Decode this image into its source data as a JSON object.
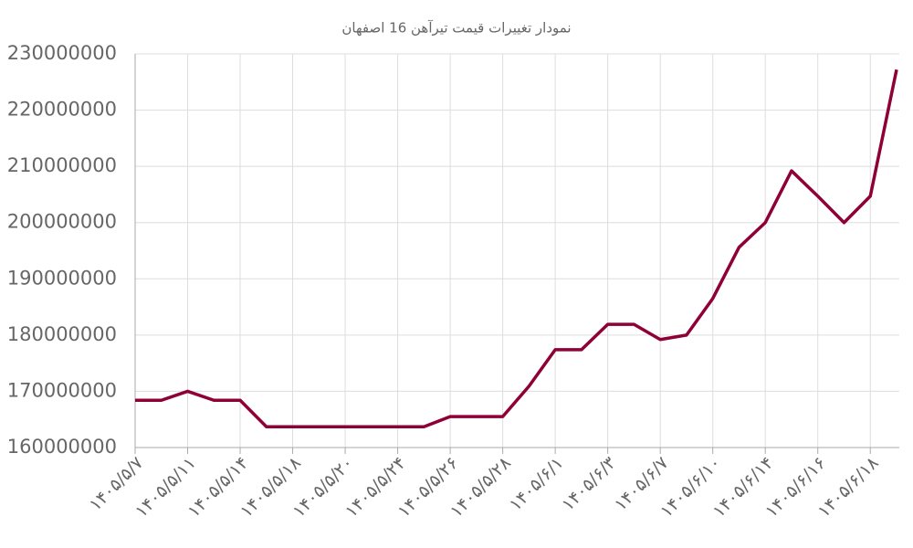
{
  "chart_data": {
    "type": "line",
    "title": "نمودار تغییرات قیمت تیرآهن 16 اصفهان",
    "categories": [
      "۱۴۰۵/۵/۷",
      null,
      "۱۴۰۵/۵/۱۱",
      null,
      "۱۴۰۵/۵/۱۴",
      null,
      "۱۴۰۵/۵/۱۸",
      null,
      "۱۴۰۵/۵/۲۰",
      null,
      "۱۴۰۵/۵/۲۴",
      null,
      "۱۴۰۵/۵/۲۶",
      null,
      "۱۴۰۵/۵/۲۸",
      null,
      "۱۴۰۵/۶/۱",
      null,
      "۱۴۰۵/۶/۳",
      null,
      "۱۴۰۵/۶/۷",
      null,
      "۱۴۰۵/۶/۱۰",
      null,
      "۱۴۰۵/۶/۱۴",
      null,
      "۱۴۰۵/۶/۱۶",
      null,
      "۱۴۰۵/۶/۱۸",
      null
    ],
    "series": [
      {
        "color": "#8f0036",
        "values": [
          168400000,
          168400000,
          170000000,
          168400000,
          168400000,
          163700000,
          163700000,
          163700000,
          163700000,
          163700000,
          163700000,
          163700000,
          165500000,
          165500000,
          165500000,
          170900000,
          177400000,
          177400000,
          181900000,
          181900000,
          179200000,
          180000000,
          186500000,
          195600000,
          200000000,
          209200000,
          204700000,
          200000000,
          204700000,
          227200000
        ]
      }
    ],
    "ylim": [
      160000000,
      230000000
    ],
    "yticks": [
      160000000,
      170000000,
      180000000,
      190000000,
      200000000,
      210000000,
      220000000,
      230000000
    ],
    "grid": true
  }
}
